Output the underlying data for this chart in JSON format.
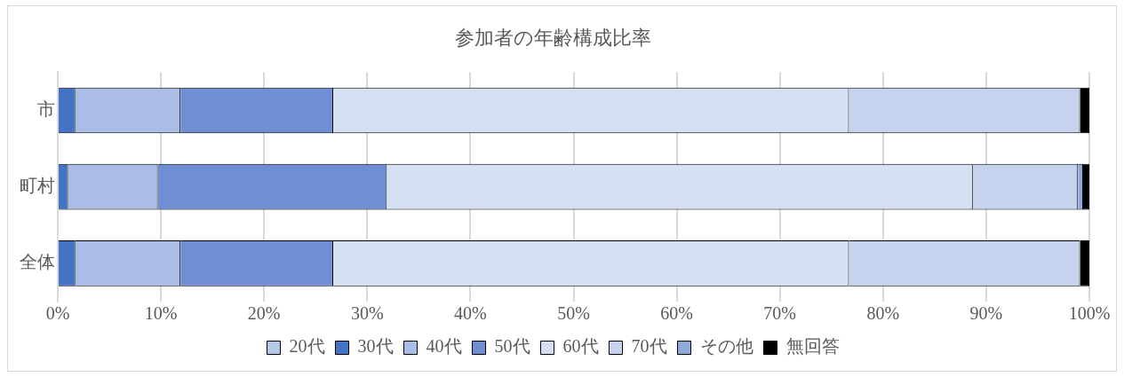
{
  "chart_data": {
    "type": "bar",
    "orientation": "horizontal",
    "stacked": true,
    "title": "参加者の年齢構成比率",
    "categories": [
      "市",
      "町村",
      "全体"
    ],
    "series": [
      {
        "name": "20代",
        "color": "#b4c7e7",
        "values": [
          0,
          0,
          0
        ]
      },
      {
        "name": "30代",
        "color": "#4472c4",
        "values": [
          1.7,
          1.0,
          1.7
        ]
      },
      {
        "name": "40代",
        "color": "#a9bde6",
        "values": [
          10.2,
          8.7,
          10.2
        ]
      },
      {
        "name": "50代",
        "color": "#6f8fd4",
        "values": [
          14.8,
          22.2,
          14.8
        ]
      },
      {
        "name": "60代",
        "color": "#d6e0f3",
        "values": [
          50.0,
          56.8,
          50.0
        ]
      },
      {
        "name": "70代",
        "color": "#c5d3ee",
        "values": [
          22.4,
          10.2,
          22.4
        ]
      },
      {
        "name": "その他",
        "color": "#8eaadb",
        "values": [
          0,
          0.5,
          0
        ]
      },
      {
        "name": "無回答",
        "color": "#000000",
        "values": [
          0.9,
          0.6,
          0.9
        ]
      }
    ],
    "xlim": [
      0,
      100
    ],
    "xticks": [
      {
        "value": 0,
        "label": "0%"
      },
      {
        "value": 10,
        "label": "10%"
      },
      {
        "value": 20,
        "label": "20%"
      },
      {
        "value": 30,
        "label": "30%"
      },
      {
        "value": 40,
        "label": "40%"
      },
      {
        "value": 50,
        "label": "50%"
      },
      {
        "value": 60,
        "label": "60%"
      },
      {
        "value": 70,
        "label": "70%"
      },
      {
        "value": 80,
        "label": "80%"
      },
      {
        "value": 90,
        "label": "90%"
      },
      {
        "value": 100,
        "label": "100%"
      }
    ],
    "grid": "x",
    "legend": "bottom"
  }
}
